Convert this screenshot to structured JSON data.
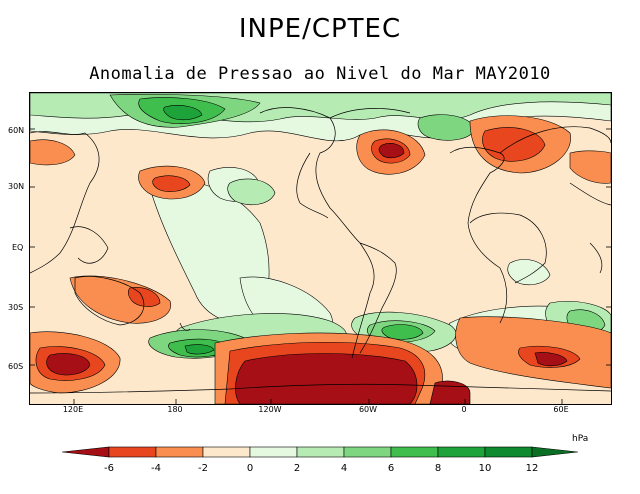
{
  "header": {
    "title": "INPE/CPTEC",
    "subtitle": "Anomalia de Pressao ao Nivel do Mar MAY2010"
  },
  "map": {
    "lat_labels": [
      "60N",
      "30N",
      "EQ",
      "30S",
      "60S"
    ],
    "lon_labels": [
      "120E",
      "180",
      "120W",
      "60W",
      "0",
      "60E"
    ]
  },
  "legend": {
    "unit": "hPa",
    "tick_labels": [
      "-6",
      "-4",
      "-2",
      "0",
      "2",
      "4",
      "6",
      "8",
      "10",
      "12"
    ],
    "colors": {
      "lt_-6": "#a50f15",
      "-6_-4": "#e8461e",
      "-4_-2": "#f98e50",
      "-2_0": "#fde8cc",
      "0_2": "#e5f9e0",
      "2_4": "#b6ecb4",
      "4_6": "#7ed680",
      "6_8": "#3fbe4d",
      "8_10": "#1ea23a",
      "10_12": "#0f8a2e",
      "gt_12": "#0a6e24"
    }
  }
}
